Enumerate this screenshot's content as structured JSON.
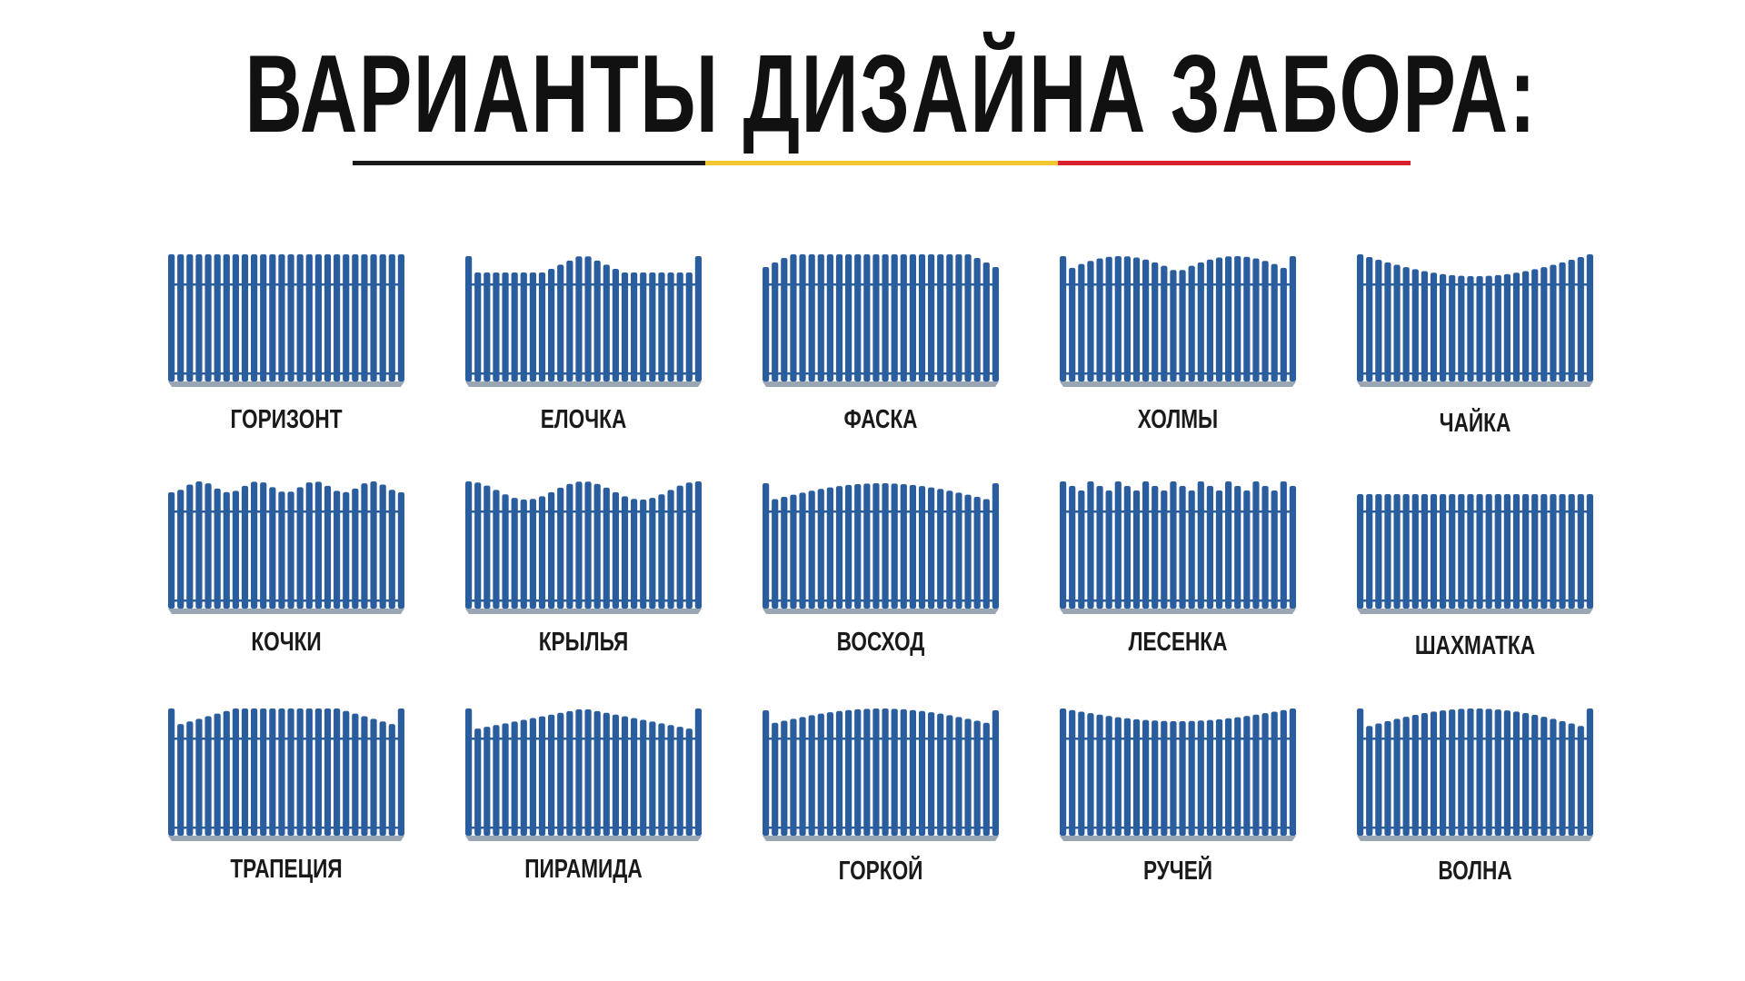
{
  "title": "ВАРИАНТЫ ДИЗАЙНА ЗАБОРА:",
  "colors": {
    "fence": "#2a5d9e",
    "fence_shadow": "#9aa6b4",
    "bar_black": "#1a1a1a",
    "bar_yellow": "#f2c531",
    "bar_red": "#d8212b",
    "text": "#1a1a1a"
  },
  "fences": [
    {
      "label": "ГОРИЗОНТ",
      "profile": "horizon"
    },
    {
      "label": "ЕЛОЧКА",
      "profile": "elochka"
    },
    {
      "label": "ФАСКА",
      "profile": "faska"
    },
    {
      "label": "ХОЛМЫ",
      "profile": "holmy"
    },
    {
      "label": "ЧАЙКА",
      "profile": "chaika"
    },
    {
      "label": "КОЧКИ",
      "profile": "kochki"
    },
    {
      "label": "КРЫЛЬЯ",
      "profile": "krylya"
    },
    {
      "label": "ВОСХОД",
      "profile": "voshod"
    },
    {
      "label": "ЛЕСЕНКА",
      "profile": "lesenka"
    },
    {
      "label": "ШАХМАТКА",
      "profile": "shahmatka"
    },
    {
      "label": "ТРАПЕЦИЯ",
      "profile": "trapeciya"
    },
    {
      "label": "ПИРАМИДА",
      "profile": "piramida"
    },
    {
      "label": "ГОРКОЙ",
      "profile": "gorkoy"
    },
    {
      "label": "РУЧЕЙ",
      "profile": "ruchey"
    },
    {
      "label": "ВОЛНА",
      "profile": "volna"
    }
  ]
}
